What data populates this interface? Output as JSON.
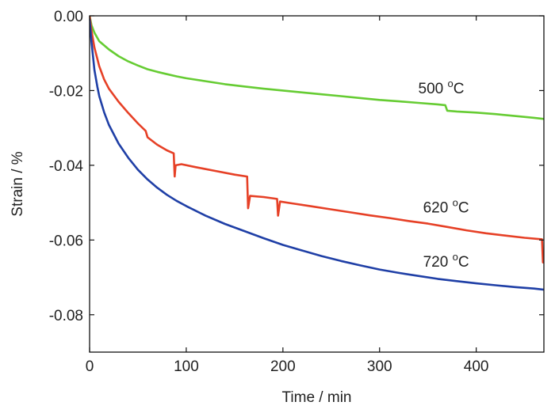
{
  "chart_data": {
    "type": "line",
    "title": "",
    "xlabel": "Time / min",
    "ylabel": "Strain / %",
    "xlim": [
      0,
      470
    ],
    "ylim": [
      -0.09,
      0.0
    ],
    "xticks": [
      0,
      100,
      200,
      300,
      400
    ],
    "xtick_labels": [
      "0",
      "100",
      "200",
      "300",
      "400"
    ],
    "yticks": [
      0.0,
      -0.02,
      -0.04,
      -0.06,
      -0.08
    ],
    "ytick_labels": [
      "0.00",
      "-0.02",
      "-0.04",
      "-0.06",
      "-0.08"
    ],
    "grid": false,
    "legend": "none",
    "series": [
      {
        "label_value": "500",
        "label_unit": "C",
        "color": "#66cc33",
        "label_at": [
          340,
          -0.0207
        ],
        "points": [
          [
            0,
            0.0
          ],
          [
            2,
            -0.0025
          ],
          [
            5,
            -0.0045
          ],
          [
            10,
            -0.0068
          ],
          [
            20,
            -0.009
          ],
          [
            30,
            -0.0108
          ],
          [
            40,
            -0.0122
          ],
          [
            50,
            -0.0133
          ],
          [
            60,
            -0.0143
          ],
          [
            70,
            -0.015
          ],
          [
            80,
            -0.0156
          ],
          [
            90,
            -0.0162
          ],
          [
            100,
            -0.0167
          ],
          [
            120,
            -0.0175
          ],
          [
            140,
            -0.0183
          ],
          [
            160,
            -0.0189
          ],
          [
            180,
            -0.0195
          ],
          [
            200,
            -0.02
          ],
          [
            220,
            -0.0205
          ],
          [
            240,
            -0.021
          ],
          [
            260,
            -0.0215
          ],
          [
            280,
            -0.022
          ],
          [
            300,
            -0.0225
          ],
          [
            320,
            -0.0229
          ],
          [
            340,
            -0.0233
          ],
          [
            360,
            -0.0237
          ],
          [
            368,
            -0.0239
          ],
          [
            370,
            -0.0254
          ],
          [
            380,
            -0.0256
          ],
          [
            400,
            -0.0259
          ],
          [
            420,
            -0.0263
          ],
          [
            440,
            -0.0268
          ],
          [
            460,
            -0.0273
          ],
          [
            470,
            -0.0276
          ]
        ]
      },
      {
        "label_value": "620",
        "label_unit": "C",
        "color": "#e64026",
        "label_at": [
          345,
          -0.0526
        ],
        "points": [
          [
            0,
            0.0
          ],
          [
            2,
            -0.004
          ],
          [
            5,
            -0.0085
          ],
          [
            10,
            -0.0135
          ],
          [
            15,
            -0.017
          ],
          [
            20,
            -0.0195
          ],
          [
            30,
            -0.023
          ],
          [
            40,
            -0.026
          ],
          [
            50,
            -0.0288
          ],
          [
            58,
            -0.0308
          ],
          [
            60,
            -0.0325
          ],
          [
            70,
            -0.0345
          ],
          [
            80,
            -0.036
          ],
          [
            87,
            -0.0368
          ],
          [
            88,
            -0.043
          ],
          [
            89,
            -0.04
          ],
          [
            95,
            -0.0397
          ],
          [
            110,
            -0.0405
          ],
          [
            130,
            -0.0415
          ],
          [
            150,
            -0.0425
          ],
          [
            163,
            -0.043
          ],
          [
            164,
            -0.0515
          ],
          [
            166,
            -0.0482
          ],
          [
            180,
            -0.0485
          ],
          [
            194,
            -0.049
          ],
          [
            195,
            -0.0535
          ],
          [
            197,
            -0.0497
          ],
          [
            210,
            -0.0502
          ],
          [
            230,
            -0.051
          ],
          [
            250,
            -0.0518
          ],
          [
            270,
            -0.0526
          ],
          [
            290,
            -0.0534
          ],
          [
            310,
            -0.0541
          ],
          [
            330,
            -0.0549
          ],
          [
            350,
            -0.0556
          ],
          [
            370,
            -0.0565
          ],
          [
            390,
            -0.0574
          ],
          [
            410,
            -0.0582
          ],
          [
            430,
            -0.0588
          ],
          [
            450,
            -0.0594
          ],
          [
            468,
            -0.0598
          ],
          [
            469,
            -0.066
          ]
        ]
      },
      {
        "label_value": "720",
        "label_unit": "C",
        "color": "#1f3fa6",
        "label_at": [
          345,
          -0.0671
        ],
        "points": [
          [
            0,
            -0.001
          ],
          [
            2,
            -0.007
          ],
          [
            5,
            -0.0145
          ],
          [
            8,
            -0.019
          ],
          [
            10,
            -0.0215
          ],
          [
            15,
            -0.0258
          ],
          [
            20,
            -0.0292
          ],
          [
            30,
            -0.0342
          ],
          [
            40,
            -0.038
          ],
          [
            50,
            -0.0412
          ],
          [
            60,
            -0.0438
          ],
          [
            70,
            -0.046
          ],
          [
            80,
            -0.0479
          ],
          [
            90,
            -0.0495
          ],
          [
            100,
            -0.0509
          ],
          [
            120,
            -0.0535
          ],
          [
            140,
            -0.0557
          ],
          [
            160,
            -0.0576
          ],
          [
            180,
            -0.0595
          ],
          [
            200,
            -0.0613
          ],
          [
            220,
            -0.0628
          ],
          [
            240,
            -0.0643
          ],
          [
            260,
            -0.0656
          ],
          [
            280,
            -0.0668
          ],
          [
            300,
            -0.0679
          ],
          [
            320,
            -0.0688
          ],
          [
            340,
            -0.0696
          ],
          [
            360,
            -0.0704
          ],
          [
            380,
            -0.071
          ],
          [
            400,
            -0.0716
          ],
          [
            420,
            -0.0721
          ],
          [
            440,
            -0.0726
          ],
          [
            460,
            -0.073
          ],
          [
            470,
            -0.0733
          ]
        ]
      }
    ]
  }
}
